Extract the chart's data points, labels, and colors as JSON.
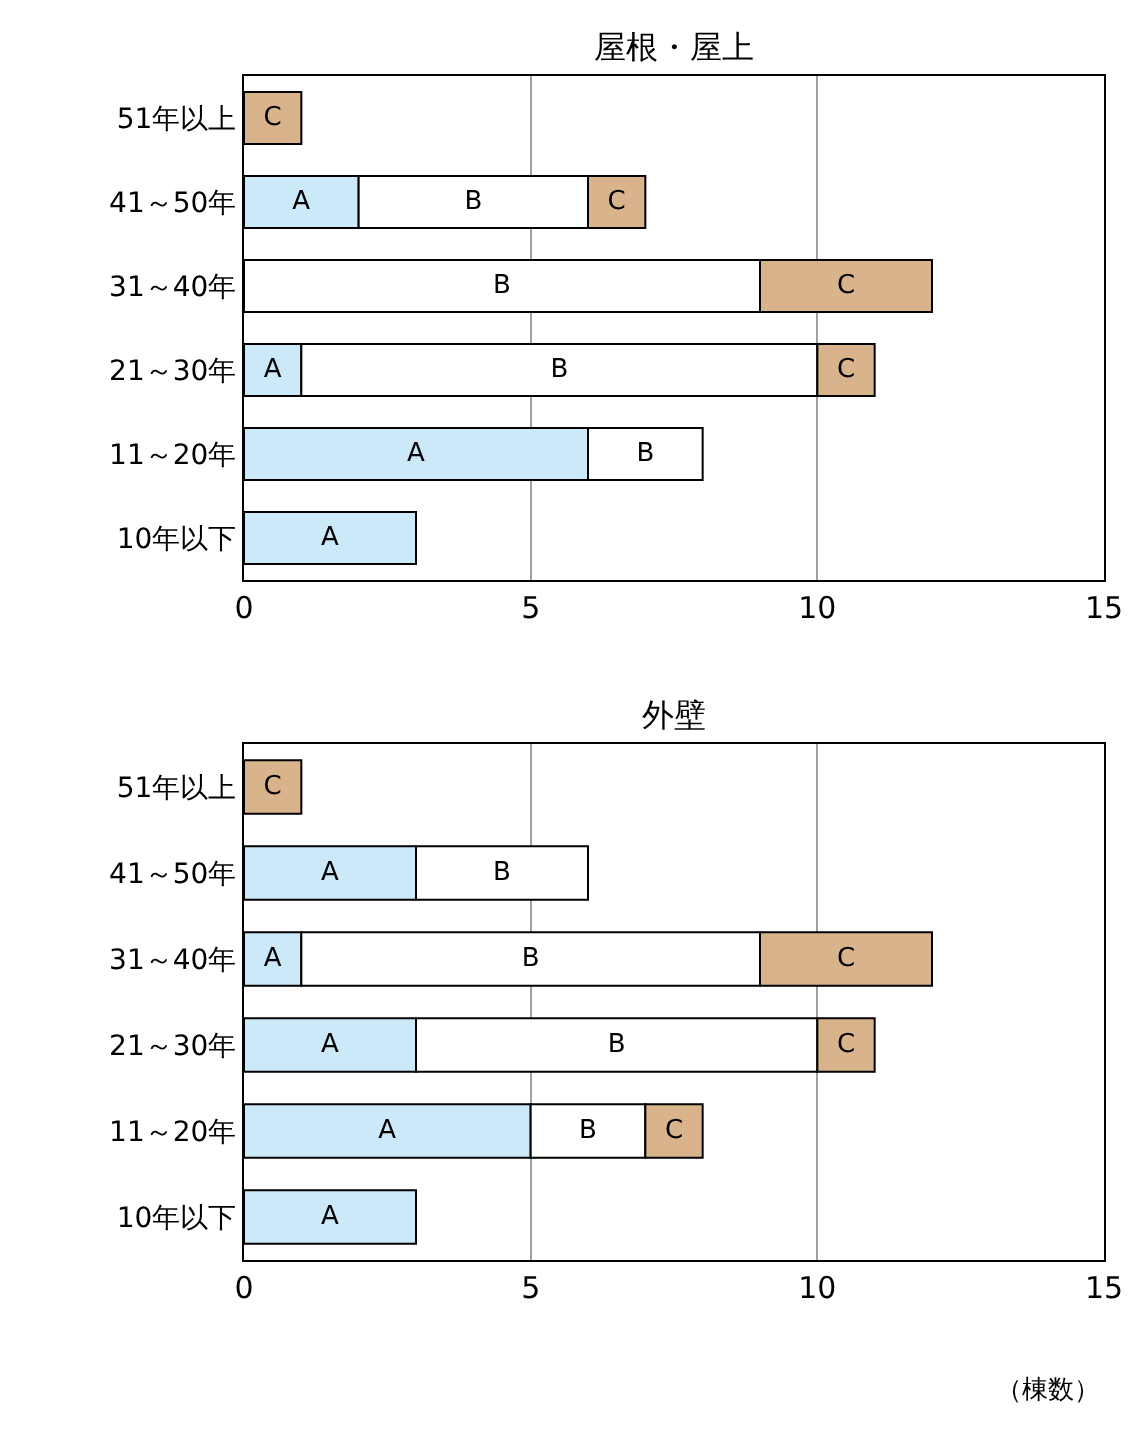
{
  "chart_data": [
    {
      "type": "bar",
      "title": "屋根・屋上",
      "orientation": "horizontal",
      "stacked": true,
      "grid": "x",
      "categories": [
        "51年以上",
        "41～50年",
        "31～40年",
        "21～30年",
        "11～20年",
        "10年以下"
      ],
      "xlim": [
        0,
        15
      ],
      "xticks": [
        0,
        5,
        10,
        15
      ],
      "series": [
        {
          "name": "A",
          "color": "#cce9f9",
          "values": [
            null,
            2,
            null,
            1,
            6,
            3
          ]
        },
        {
          "name": "B",
          "color": "#ffffff",
          "values": [
            null,
            4,
            9,
            9,
            2,
            null
          ]
        },
        {
          "name": "C",
          "color": "#d9b38c",
          "values": [
            1,
            1,
            3,
            1,
            null,
            null
          ]
        }
      ]
    },
    {
      "type": "bar",
      "title": "外壁",
      "orientation": "horizontal",
      "stacked": true,
      "grid": "x",
      "categories": [
        "51年以上",
        "41～50年",
        "31～40年",
        "21～30年",
        "11～20年",
        "10年以下"
      ],
      "xlim": [
        0,
        15
      ],
      "xticks": [
        0,
        5,
        10,
        15
      ],
      "annotations": [
        "（棟数）"
      ],
      "series": [
        {
          "name": "A",
          "color": "#cce9f9",
          "values": [
            null,
            3,
            1,
            3,
            5,
            3
          ]
        },
        {
          "name": "B",
          "color": "#ffffff",
          "values": [
            null,
            3,
            8,
            7,
            2,
            null
          ]
        },
        {
          "name": "C",
          "color": "#d9b38c",
          "values": [
            1,
            null,
            3,
            1,
            1,
            null
          ]
        }
      ]
    }
  ]
}
